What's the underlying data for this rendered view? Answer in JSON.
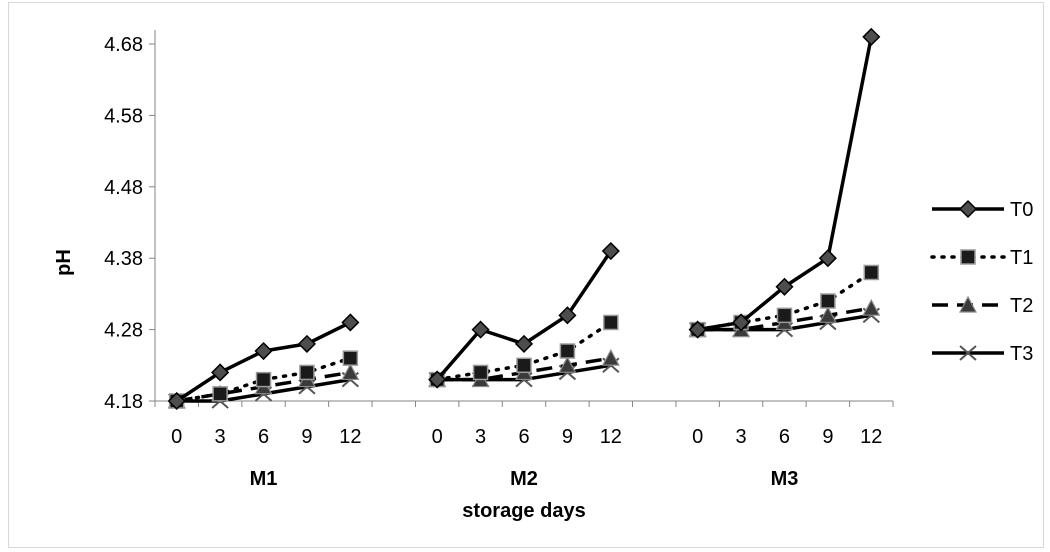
{
  "chart_data": {
    "type": "line",
    "xlabel": "storage days",
    "ylabel": "pH",
    "ylim": [
      4.18,
      4.7
    ],
    "yticks": [
      "4.18",
      "4.28",
      "4.38",
      "4.48",
      "4.58",
      "4.68"
    ],
    "groups": [
      "M1",
      "M2",
      "M3"
    ],
    "x": [
      "0",
      "3",
      "6",
      "9",
      "12"
    ],
    "legend_position": "right",
    "grid": false,
    "series": [
      {
        "name": "T0",
        "style": "solid",
        "marker": "diamond",
        "color": "#000000",
        "values": [
          [
            4.18,
            4.22,
            4.25,
            4.26,
            4.29
          ],
          [
            4.21,
            4.28,
            4.26,
            4.3,
            4.39
          ],
          [
            4.28,
            4.29,
            4.34,
            4.38,
            4.69
          ]
        ]
      },
      {
        "name": "T1",
        "style": "dotted",
        "marker": "square",
        "color": "#000000",
        "values": [
          [
            4.18,
            4.19,
            4.21,
            4.22,
            4.24
          ],
          [
            4.21,
            4.22,
            4.23,
            4.25,
            4.29
          ],
          [
            4.28,
            4.29,
            4.3,
            4.32,
            4.36
          ]
        ]
      },
      {
        "name": "T2",
        "style": "dashed",
        "marker": "triangle",
        "color": "#000000",
        "values": [
          [
            4.18,
            4.19,
            4.2,
            4.21,
            4.22
          ],
          [
            4.21,
            4.21,
            4.22,
            4.23,
            4.24
          ],
          [
            4.28,
            4.28,
            4.29,
            4.3,
            4.31
          ]
        ]
      },
      {
        "name": "T3",
        "style": "solid",
        "marker": "x",
        "color": "#000000",
        "values": [
          [
            4.18,
            4.18,
            4.19,
            4.2,
            4.21
          ],
          [
            4.21,
            4.21,
            4.21,
            4.22,
            4.23
          ],
          [
            4.28,
            4.28,
            4.28,
            4.29,
            4.3
          ]
        ]
      }
    ]
  }
}
